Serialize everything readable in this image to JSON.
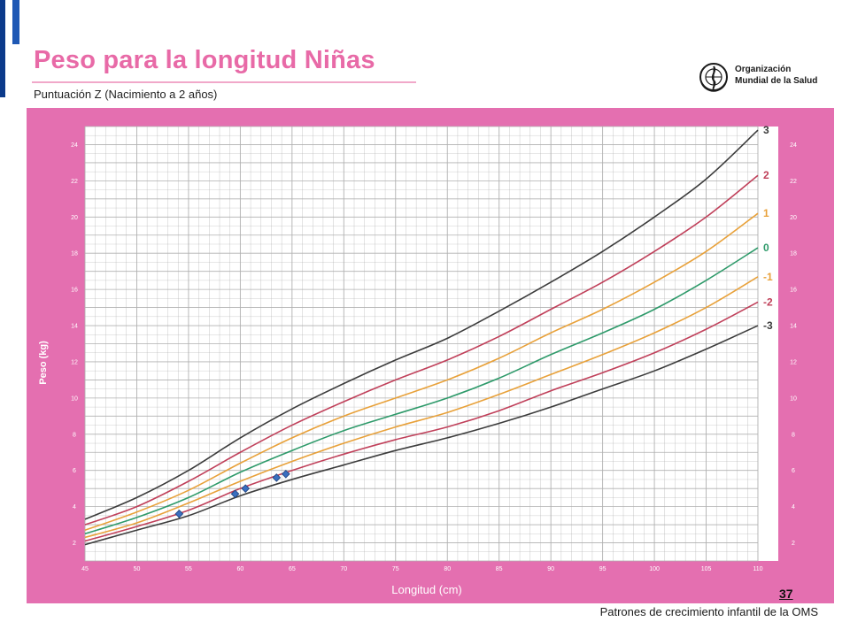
{
  "header": {
    "title": "Peso para la longitud Niñas",
    "subtitle": "Puntuación Z  (Nacimiento a 2 años)",
    "org_name_line1": "Organización",
    "org_name_line2": "Mundial de la Salud"
  },
  "footer": {
    "source": "Patrones de crecimiento infantil de la OMS",
    "page_number": "37"
  },
  "colors": {
    "panel": "#e46fb0",
    "plot_bg": "#ffffff",
    "grid": "#b0b0b0",
    "z3": "#3c3c3c",
    "z2": "#c0405a",
    "z1": "#e8a13a",
    "z0": "#2e9a6a",
    "points": "#3a6fc0",
    "title": "#e86aa7"
  },
  "chart_data": {
    "type": "line",
    "title": "Peso para la longitud Niñas",
    "xlabel": "Longitud (cm)",
    "ylabel": "Peso (kg)",
    "xlim": [
      45,
      110
    ],
    "ylim": [
      1,
      25
    ],
    "x_ticks": [
      45,
      50,
      55,
      60,
      65,
      70,
      75,
      80,
      85,
      90,
      95,
      100,
      105,
      110
    ],
    "y_ticks": [
      2,
      4,
      6,
      8,
      10,
      12,
      14,
      16,
      18,
      20,
      22,
      24
    ],
    "grid": true,
    "x": [
      45,
      50,
      55,
      60,
      65,
      70,
      75,
      80,
      85,
      90,
      95,
      100,
      105,
      110
    ],
    "series": [
      {
        "name": "3",
        "color_key": "z3",
        "values": [
          3.3,
          4.5,
          6.0,
          7.8,
          9.4,
          10.8,
          12.1,
          13.3,
          14.8,
          16.4,
          18.1,
          20.0,
          22.1,
          24.8
        ]
      },
      {
        "name": "2",
        "color_key": "z2",
        "values": [
          3.0,
          4.0,
          5.4,
          7.0,
          8.5,
          9.8,
          11.0,
          12.1,
          13.4,
          14.9,
          16.4,
          18.1,
          20.0,
          22.3
        ]
      },
      {
        "name": "1",
        "color_key": "z1",
        "values": [
          2.7,
          3.7,
          4.9,
          6.4,
          7.8,
          9.0,
          10.0,
          11.0,
          12.2,
          13.6,
          14.9,
          16.4,
          18.1,
          20.2
        ]
      },
      {
        "name": "0",
        "color_key": "z0",
        "values": [
          2.5,
          3.4,
          4.5,
          5.9,
          7.1,
          8.2,
          9.1,
          10.0,
          11.1,
          12.4,
          13.6,
          14.9,
          16.5,
          18.3
        ]
      },
      {
        "name": "-1",
        "color_key": "z1",
        "values": [
          2.3,
          3.1,
          4.2,
          5.4,
          6.5,
          7.5,
          8.4,
          9.2,
          10.2,
          11.3,
          12.4,
          13.6,
          15.0,
          16.7
        ]
      },
      {
        "name": "-2",
        "color_key": "z2",
        "values": [
          2.1,
          2.9,
          3.8,
          5.0,
          6.0,
          6.9,
          7.7,
          8.4,
          9.3,
          10.4,
          11.4,
          12.5,
          13.8,
          15.3
        ]
      },
      {
        "name": "-3",
        "color_key": "z3",
        "values": [
          1.9,
          2.7,
          3.5,
          4.6,
          5.5,
          6.3,
          7.1,
          7.8,
          8.6,
          9.5,
          10.5,
          11.5,
          12.7,
          14.0
        ]
      }
    ],
    "points": [
      {
        "x": 54.1,
        "y": 3.6
      },
      {
        "x": 59.5,
        "y": 4.7
      },
      {
        "x": 60.5,
        "y": 5.0
      },
      {
        "x": 63.5,
        "y": 5.6
      },
      {
        "x": 64.4,
        "y": 5.8
      }
    ]
  }
}
